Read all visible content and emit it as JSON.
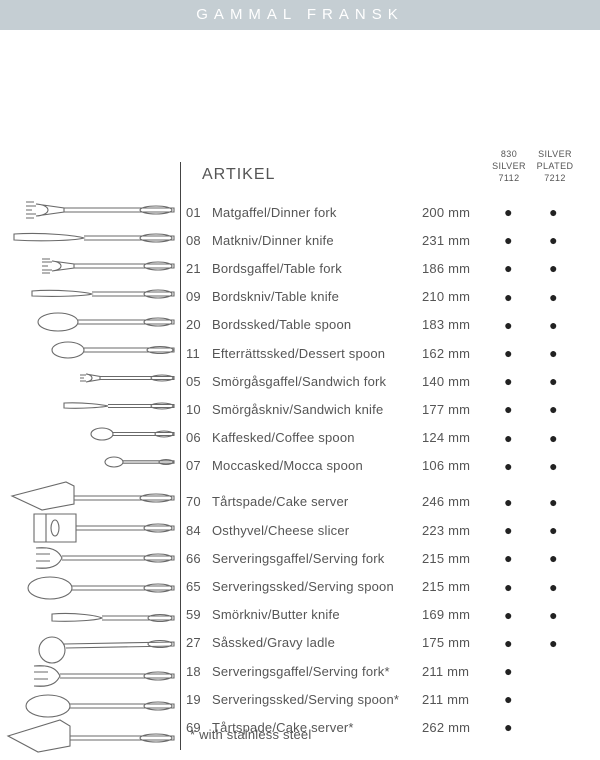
{
  "header": {
    "title": "GAMMAL FRANSK"
  },
  "columns": {
    "artikel": "ARTIKEL",
    "col1": {
      "l1": "830",
      "l2": "SILVER",
      "l3": "7112"
    },
    "col2": {
      "l1": "SILVER",
      "l2": "PLATED",
      "l3": "7212"
    }
  },
  "footnote": "* with stainless steel",
  "dot": "●",
  "rows": [
    {
      "num": "01",
      "name": "Matgaffel/Dinner fork",
      "mm": "200 mm",
      "c1": true,
      "c2": true
    },
    {
      "num": "08",
      "name": "Matkniv/Dinner knife",
      "mm": "231 mm",
      "c1": true,
      "c2": true
    },
    {
      "num": "21",
      "name": "Bordsgaffel/Table fork",
      "mm": "186 mm",
      "c1": true,
      "c2": true
    },
    {
      "num": "09",
      "name": "Bordskniv/Table knife",
      "mm": "210 mm",
      "c1": true,
      "c2": true
    },
    {
      "num": "20",
      "name": "Bordssked/Table spoon",
      "mm": "183 mm",
      "c1": true,
      "c2": true
    },
    {
      "num": "11",
      "name": "Efterrättssked/Dessert spoon",
      "mm": "162 mm",
      "c1": true,
      "c2": true
    },
    {
      "num": "05",
      "name": "Smörgåsgaffel/Sandwich fork",
      "mm": "140 mm",
      "c1": true,
      "c2": true
    },
    {
      "num": "10",
      "name": "Smörgåskniv/Sandwich knife",
      "mm": "177 mm",
      "c1": true,
      "c2": true
    },
    {
      "num": "06",
      "name": "Kaffesked/Coffee spoon",
      "mm": "124 mm",
      "c1": true,
      "c2": true
    },
    {
      "num": "07",
      "name": "Moccasked/Mocca spoon",
      "mm": "106 mm",
      "c1": true,
      "c2": true
    },
    {
      "spacer": true
    },
    {
      "num": "70",
      "name": "Tårtspade/Cake server",
      "mm": "246 mm",
      "c1": true,
      "c2": true
    },
    {
      "num": "84",
      "name": "Osthyvel/Cheese slicer",
      "mm": "223 mm",
      "c1": true,
      "c2": true
    },
    {
      "num": "66",
      "name": "Serveringsgaffel/Serving fork",
      "mm": "215 mm",
      "c1": true,
      "c2": true
    },
    {
      "num": "65",
      "name": "Serveringssked/Serving spoon",
      "mm": "215 mm",
      "c1": true,
      "c2": true
    },
    {
      "num": "59",
      "name": "Smörkniv/Butter knife",
      "mm": "169 mm",
      "c1": true,
      "c2": true
    },
    {
      "num": "27",
      "name": "Såssked/Gravy ladle",
      "mm": "175 mm",
      "c1": true,
      "c2": true
    },
    {
      "num": "18",
      "name": "Serveringsgaffel/Serving fork*",
      "mm": "211 mm",
      "c1": true,
      "c2": false
    },
    {
      "num": "19",
      "name": "Serveringssked/Serving spoon*",
      "mm": "211 mm",
      "c1": true,
      "c2": false
    },
    {
      "num": "69",
      "name": "Tårtspade/Cake server*",
      "mm": "262 mm",
      "c1": true,
      "c2": false
    }
  ],
  "style": {
    "header_bg": "#c5ced3",
    "text_color": "#555555",
    "dot_color": "#222222",
    "stroke": "#474747",
    "row_height": 28.2,
    "font_size_row": 13,
    "font_size_title": 16,
    "font_size_colh": 9
  }
}
